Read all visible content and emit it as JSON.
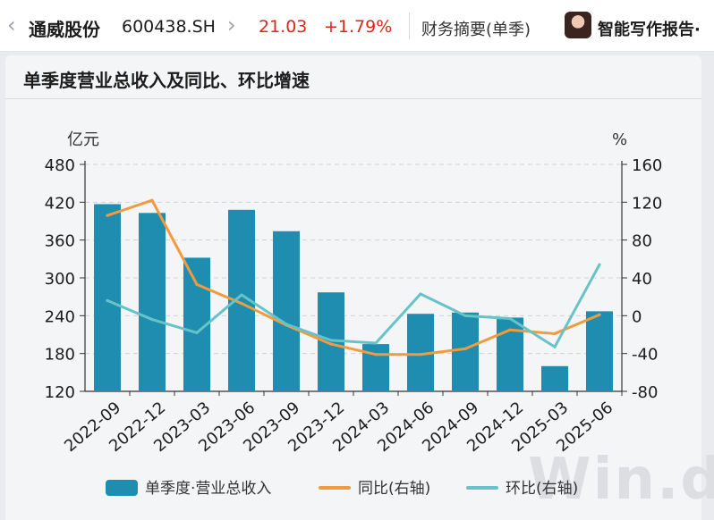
{
  "topbar": {
    "back_icon": "‹",
    "stock_name": "通威股份",
    "stock_code": "600438.SH",
    "next_icon": "›",
    "price": "21.03",
    "change": "+1.79%",
    "section": "财务摘要(单季)",
    "ai_label": "智能写作报告·"
  },
  "watermark": "Win.d",
  "chart_data": {
    "type": "bar",
    "title": "单季度营业总收入及同比、环比增速",
    "left_unit": "亿元",
    "right_unit": "%",
    "categories": [
      "2022-09",
      "2022-12",
      "2023-03",
      "2023-06",
      "2023-09",
      "2023-12",
      "2024-03",
      "2024-06",
      "2024-09",
      "2024-12",
      "2025-03",
      "2025-06"
    ],
    "left_axis": {
      "min": 120,
      "max": 480,
      "ticks": [
        120,
        180,
        240,
        300,
        360,
        420,
        480
      ]
    },
    "right_axis": {
      "min": -80,
      "max": 160,
      "ticks": [
        -80,
        -40,
        0,
        40,
        80,
        120,
        160
      ]
    },
    "series": [
      {
        "name": "单季度·营业总收入",
        "type": "bar",
        "axis": "left",
        "color": "#1f8db0",
        "values": [
          417,
          403,
          332,
          408,
          374,
          277,
          195,
          243,
          245,
          237,
          160,
          247
        ]
      },
      {
        "name": "同比(右轴)",
        "type": "line",
        "axis": "right",
        "color": "#f29a3e",
        "values": [
          106,
          122,
          33,
          13,
          -10,
          -30,
          -41,
          -41,
          -35,
          -15,
          -19,
          1
        ]
      },
      {
        "name": "环比(右轴)",
        "type": "line",
        "axis": "right",
        "color": "#66c4c8",
        "values": [
          16,
          -4,
          -18,
          22,
          -9,
          -26,
          -29,
          23,
          0,
          -3,
          -33,
          54
        ]
      }
    ],
    "grid": "horizontal dashed"
  }
}
